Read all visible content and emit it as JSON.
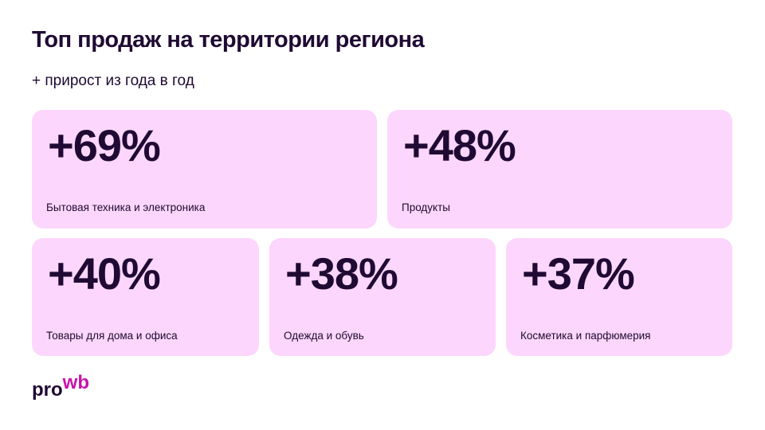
{
  "header": {
    "title": "Топ продаж на территории региона",
    "subtitle": "+ прирост из года в год"
  },
  "cards": [
    {
      "value": "+69%",
      "label": "Бытовая техника и электроника"
    },
    {
      "value": "+48%",
      "label": "Продукты"
    },
    {
      "value": "+40%",
      "label": "Товары для дома и офиса"
    },
    {
      "value": "+38%",
      "label": "Одежда и обувь"
    },
    {
      "value": "+37%",
      "label": "Косметика и парфюмерия"
    }
  ],
  "logo": {
    "pro": "pro",
    "wb": "wb"
  }
}
